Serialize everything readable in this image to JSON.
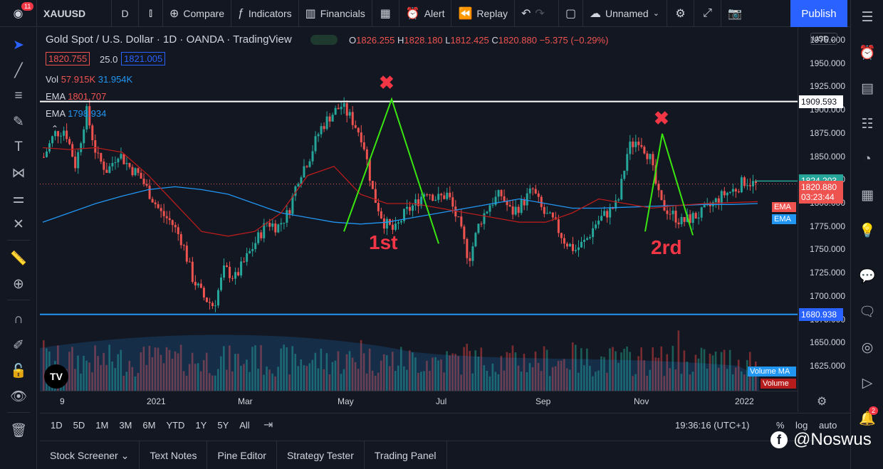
{
  "header": {
    "badge_count": "11",
    "symbol": "XAUUSD",
    "interval": "D",
    "compare": "Compare",
    "indicators": "Indicators",
    "financials": "Financials",
    "alert": "Alert",
    "replay": "Replay",
    "layout_name": "Unnamed",
    "publish": "Publish"
  },
  "legend": {
    "title": "Gold Spot / U.S. Dollar · 1D · OANDA · TradingView",
    "open_label": "O",
    "open": "1826.255",
    "high_label": "H",
    "high": "1828.180",
    "low_label": "L",
    "low": "1812.425",
    "close_label": "C",
    "close": "1820.880",
    "change": "−5.375 (−0.29%)",
    "bid": "1820.755",
    "spread": "25.0",
    "ask": "1821.005",
    "vol_label": "Vol",
    "vol_1": "57.915K",
    "vol_2": "31.954K",
    "ema_label": "EMA",
    "ema_1": "1801.707",
    "ema_label_2": "EMA",
    "ema_2": "1798.934"
  },
  "price_axis": {
    "currency": "USD",
    "ticks": [
      "1975.000",
      "1950.000",
      "1925.000",
      "1900.000",
      "1875.000",
      "1850.000",
      "1825.000",
      "1800.000",
      "1775.000",
      "1750.000",
      "1725.000",
      "1700.000",
      "1675.000",
      "1650.000",
      "1625.000"
    ],
    "line_high_label": "1909.593",
    "green_label": "1824.203",
    "last_price": "1820.880",
    "countdown": "03:23:44",
    "line_low_label": "1680.938",
    "ema_tag_1": "EMA",
    "ema_tag_2": "EMA",
    "vol_ma_tag": "Volume MA",
    "vol_tag": "Volume"
  },
  "time_axis": {
    "labels": [
      "9",
      "2021",
      "Mar",
      "May",
      "Jul",
      "Sep",
      "Nov",
      "2022"
    ]
  },
  "annotations": {
    "first": "1st",
    "second": "2rd",
    "x_mark": "✖"
  },
  "range_bar": {
    "ranges": [
      "1D",
      "5D",
      "1M",
      "3M",
      "6M",
      "YTD",
      "1Y",
      "5Y",
      "All"
    ],
    "time": "19:36:16 (UTC+1)",
    "percent": "%",
    "log": "log",
    "auto": "auto"
  },
  "bottom_tabs": [
    "Stock Screener",
    "Text Notes",
    "Pine Editor",
    "Strategy Tester",
    "Trading Panel"
  ],
  "watermark": "@Noswus",
  "right_badge": "2",
  "colors": {
    "up": "#26a69a",
    "down": "#ef5350",
    "accent": "#2962ff",
    "annotation": "#f23645",
    "zigzag": "#39e60f"
  },
  "chart_data": {
    "type": "candlestick",
    "symbol": "XAUUSD",
    "ylim": [
      1600,
      1985
    ],
    "horizontal_lines": [
      1909.593,
      1680.938
    ],
    "last_price": 1820.88,
    "x": [
      "9",
      "2021",
      "Mar",
      "May",
      "Jul",
      "Sep",
      "Nov",
      "2022"
    ],
    "close_path": [
      1850,
      1875,
      1880,
      1840,
      1900,
      1850,
      1835,
      1855,
      1840,
      1830,
      1810,
      1790,
      1780,
      1760,
      1720,
      1700,
      1690,
      1730,
      1720,
      1740,
      1760,
      1780,
      1775,
      1790,
      1830,
      1850,
      1880,
      1895,
      1905,
      1890,
      1870,
      1810,
      1780,
      1770,
      1790,
      1800,
      1815,
      1805,
      1810,
      1780,
      1740,
      1780,
      1800,
      1810,
      1790,
      1800,
      1815,
      1790,
      1780,
      1760,
      1750,
      1760,
      1780,
      1790,
      1800,
      1860,
      1870,
      1850,
      1800,
      1790,
      1780,
      1785,
      1790,
      1800,
      1810,
      1815,
      1825,
      1820
    ],
    "ema_slow_path": [
      1780,
      1790,
      1800,
      1808,
      1815,
      1818,
      1815,
      1810,
      1800,
      1790,
      1785,
      1780,
      1778,
      1780,
      1785,
      1790,
      1795,
      1800,
      1805,
      1800,
      1795,
      1795,
      1796,
      1797,
      1798,
      1799,
      1799,
      1800
    ],
    "ema_fast_path": [
      1860,
      1858,
      1860,
      1855,
      1830,
      1800,
      1770,
      1765,
      1770,
      1790,
      1830,
      1840,
      1810,
      1800,
      1800,
      1795,
      1790,
      1785,
      1780,
      1780,
      1790,
      1805,
      1800,
      1795,
      1798,
      1800,
      1801,
      1802
    ]
  }
}
